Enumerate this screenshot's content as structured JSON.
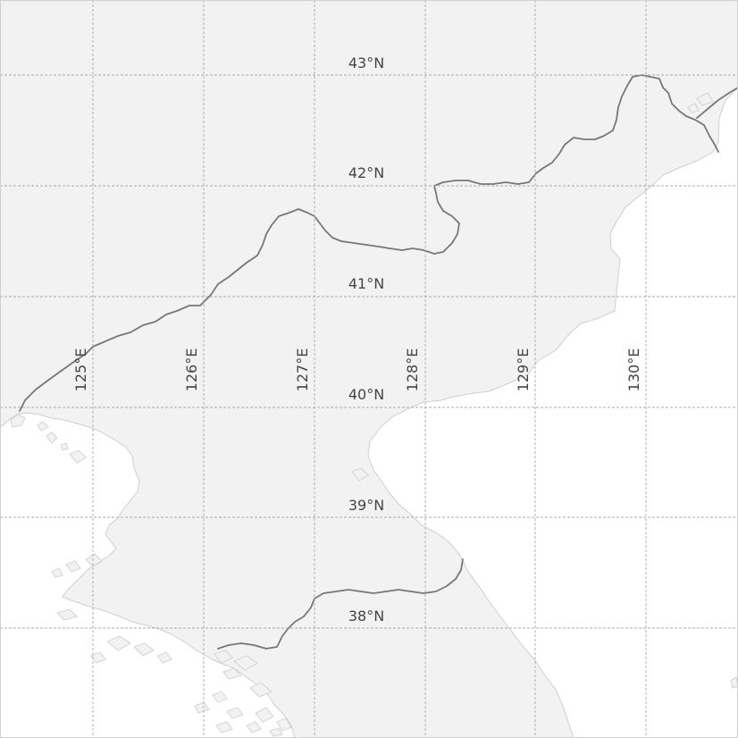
{
  "map": {
    "projection": "lat-lon graticule",
    "colors": {
      "land": "#f2f2f2",
      "sea": "#ffffff",
      "coastline": "#cfcfcf",
      "border": "#777777",
      "graticule": "#a9a9a9",
      "label": "#444444"
    },
    "latitude_labels": [
      "43°N",
      "42°N",
      "41°N",
      "40°N",
      "39°N",
      "38°N"
    ],
    "longitude_labels": [
      "125°E",
      "126°E",
      "127°E",
      "128°E",
      "129°E",
      "130°E"
    ]
  }
}
